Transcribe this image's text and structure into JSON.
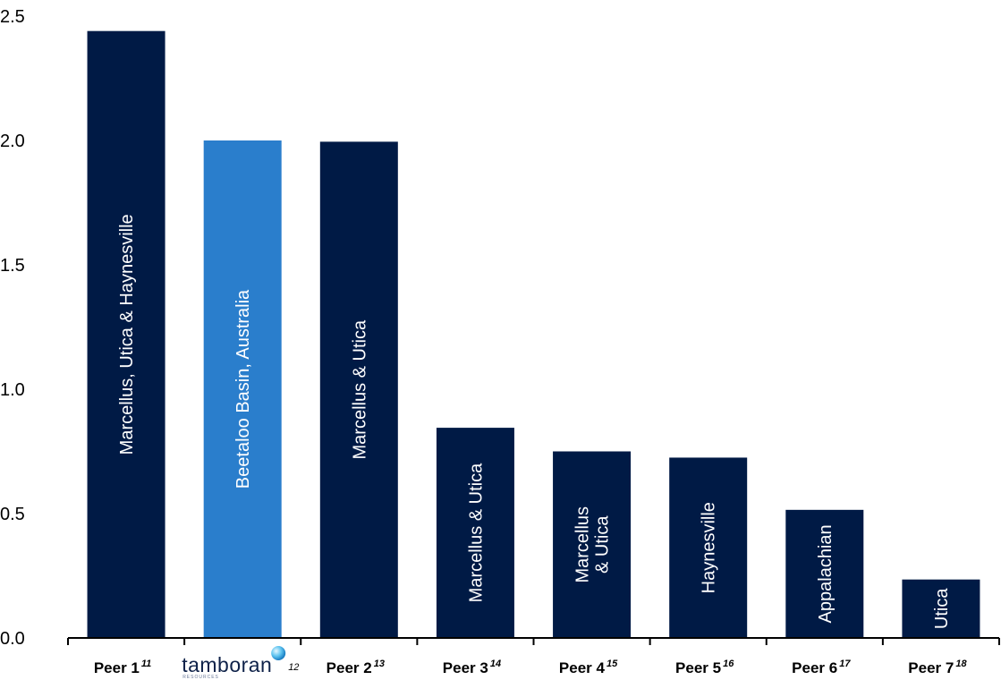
{
  "chart_data": {
    "type": "bar",
    "ylim": [
      0,
      2.5
    ],
    "yticks": [
      "0.0",
      "0.5",
      "1.0",
      "1.5",
      "2.0",
      "2.5"
    ],
    "grid": false,
    "legend": false,
    "bars": [
      {
        "category": "Peer 1",
        "sup": "11",
        "value": 2.44,
        "label": [
          "Marcellus, Utica & Haynesville"
        ],
        "color": "#001a45"
      },
      {
        "category": "",
        "logo": "tamboran",
        "logo_sub": "RESOURCES",
        "sup": "12",
        "value": 2.0,
        "label": [
          "Beetaloo Basin, Australia"
        ],
        "color": "#2a7ecc"
      },
      {
        "category": "Peer 2",
        "sup": "13",
        "value": 1.995,
        "label": [
          "Marcellus & Utica"
        ],
        "color": "#001a45"
      },
      {
        "category": "Peer 3",
        "sup": "14",
        "value": 0.845,
        "label": [
          "Marcellus & Utica"
        ],
        "color": "#001a45"
      },
      {
        "category": "Peer 4",
        "sup": "15",
        "value": 0.75,
        "label": [
          "Marcellus",
          "& Utica"
        ],
        "color": "#001a45"
      },
      {
        "category": "Peer 5",
        "sup": "16",
        "value": 0.725,
        "label": [
          "Haynesville"
        ],
        "color": "#001a45"
      },
      {
        "category": "Peer 6",
        "sup": "17",
        "value": 0.515,
        "label": [
          "Appalachian"
        ],
        "color": "#001a45"
      },
      {
        "category": "Peer 7",
        "sup": "18",
        "value": 0.235,
        "label": [
          "Utica"
        ],
        "color": "#001a45"
      }
    ]
  }
}
